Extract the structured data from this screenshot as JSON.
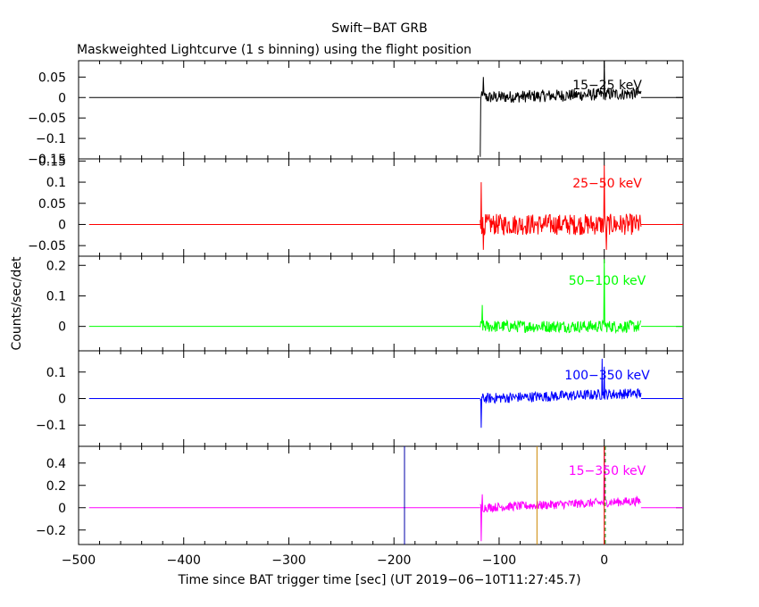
{
  "chart_data": {
    "type": "line",
    "title": "Swift−BAT GRB",
    "subtitle": "Maskweighted Lightcurve (1 s binning) using the flight position",
    "xlabel": "Time since BAT trigger time [sec] (UT 2019−06−10T11:27:45.7)",
    "ylabel": "Counts/sec/det",
    "xlim": [
      -500,
      75
    ],
    "x_ticks": [
      -500,
      -400,
      -300,
      -200,
      -100,
      0
    ],
    "x_tick_labels": [
      "−500",
      "−400",
      "−300",
      "−200",
      "−100",
      "0"
    ],
    "grid": false,
    "panels": [
      {
        "name": "15−25 keV",
        "color": "#000000",
        "ylim": [
          -0.15,
          0.09
        ],
        "y_ticks": [
          -0.15,
          -0.1,
          -0.05,
          0,
          0.05
        ],
        "y_tick_labels": [
          "−0.15",
          "−0.1",
          "−0.05",
          "0",
          "0.05"
        ],
        "noise_amplitude": 0.015,
        "trend": [
          0.0,
          0.01
        ],
        "spikes": [
          {
            "x": -118,
            "y": -0.145
          },
          {
            "x": -115,
            "y": 0.05
          },
          {
            "x": 0,
            "y": 0.09
          }
        ]
      },
      {
        "name": "25−50 keV",
        "color": "#ff0000",
        "ylim": [
          -0.075,
          0.155
        ],
        "y_ticks": [
          -0.05,
          0,
          0.05,
          0.1,
          0.15
        ],
        "y_tick_labels": [
          "−0.05",
          "0",
          "0.05",
          "0.1",
          "0.15"
        ],
        "noise_amplitude": 0.025,
        "trend": [
          0.0,
          0.0
        ],
        "spikes": [
          {
            "x": -117,
            "y": 0.1
          },
          {
            "x": -115,
            "y": -0.06
          },
          {
            "x": 0,
            "y": 0.14
          },
          {
            "x": 2,
            "y": -0.06
          }
        ]
      },
      {
        "name": "50−100 keV",
        "color": "#00ff00",
        "ylim": [
          -0.08,
          0.23
        ],
        "y_ticks": [
          0,
          0.1,
          0.2
        ],
        "y_tick_labels": [
          "0",
          "0.1",
          "0.2"
        ],
        "noise_amplitude": 0.02,
        "trend": [
          0.0,
          0.0
        ],
        "spikes": [
          {
            "x": -116,
            "y": 0.07
          },
          {
            "x": 0,
            "y": 0.22
          }
        ]
      },
      {
        "name": "100−350 keV",
        "color": "#0000ff",
        "ylim": [
          -0.18,
          0.18
        ],
        "y_ticks": [
          -0.1,
          0,
          0.1
        ],
        "y_tick_labels": [
          "−0.1",
          "0",
          "0.1"
        ],
        "noise_amplitude": 0.02,
        "trend": [
          0.0,
          0.02
        ],
        "spikes": [
          {
            "x": -117,
            "y": -0.11
          },
          {
            "x": -2,
            "y": 0.15
          },
          {
            "x": 0,
            "y": 0.12
          }
        ]
      },
      {
        "name": "15−350 keV",
        "color": "#ff00ff",
        "ylim": [
          -0.33,
          0.55
        ],
        "y_ticks": [
          -0.2,
          0,
          0.2,
          0.4
        ],
        "y_tick_labels": [
          "−0.2",
          "0",
          "0.2",
          "0.4"
        ],
        "noise_amplitude": 0.04,
        "trend": [
          0.0,
          0.06
        ],
        "spikes": [
          {
            "x": -117,
            "y": -0.3
          },
          {
            "x": -116,
            "y": 0.12
          },
          {
            "x": 0,
            "y": 0.5
          }
        ],
        "markers": [
          {
            "x": -190,
            "color": "#0000aa",
            "style": "solid"
          },
          {
            "x": -64,
            "color": "#cc8800",
            "style": "solid"
          },
          {
            "x": 0,
            "color": "#ff0000",
            "style": "solid"
          },
          {
            "x": 1,
            "color": "#008800",
            "style": "dashed"
          }
        ]
      }
    ],
    "series_start": -490,
    "data_start": -118,
    "data_end": 35,
    "dashed_tail_end": 75
  }
}
